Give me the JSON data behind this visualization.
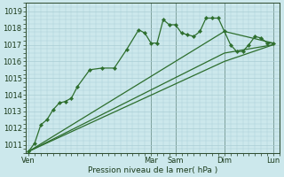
{
  "bg_color": "#cce8ec",
  "grid_color": "#aacdd4",
  "line_color": "#2d6e2d",
  "marker_color": "#2d6e2d",
  "xlabel": "Pression niveau de la mer( hPa )",
  "ylim": [
    1010.5,
    1019.5
  ],
  "yticks": [
    1011,
    1012,
    1013,
    1014,
    1015,
    1016,
    1017,
    1018,
    1019
  ],
  "day_labels": [
    "Ven",
    "Mar",
    "Sam",
    "Dim",
    "Lun"
  ],
  "day_positions": [
    0,
    40,
    48,
    64,
    80
  ],
  "series1": [
    [
      0,
      1010.6
    ],
    [
      2,
      1011.1
    ],
    [
      4,
      1012.2
    ],
    [
      6,
      1012.5
    ],
    [
      8,
      1013.1
    ],
    [
      10,
      1013.5
    ],
    [
      12,
      1013.6
    ],
    [
      14,
      1013.8
    ],
    [
      16,
      1014.5
    ],
    [
      20,
      1015.5
    ],
    [
      24,
      1015.6
    ],
    [
      28,
      1015.6
    ],
    [
      32,
      1016.7
    ],
    [
      36,
      1017.9
    ],
    [
      38,
      1017.7
    ],
    [
      40,
      1017.1
    ],
    [
      42,
      1017.1
    ],
    [
      44,
      1018.5
    ],
    [
      46,
      1018.2
    ],
    [
      48,
      1018.2
    ],
    [
      50,
      1017.7
    ],
    [
      52,
      1017.6
    ],
    [
      54,
      1017.5
    ],
    [
      56,
      1017.8
    ],
    [
      58,
      1018.6
    ],
    [
      60,
      1018.6
    ],
    [
      62,
      1018.6
    ],
    [
      64,
      1017.8
    ],
    [
      66,
      1017.0
    ],
    [
      68,
      1016.6
    ],
    [
      70,
      1016.6
    ],
    [
      72,
      1017.0
    ],
    [
      74,
      1017.5
    ],
    [
      76,
      1017.4
    ],
    [
      78,
      1017.1
    ],
    [
      80,
      1017.1
    ]
  ],
  "series2": [
    [
      0,
      1010.6
    ],
    [
      64,
      1017.8
    ],
    [
      80,
      1017.1
    ]
  ],
  "series3": [
    [
      0,
      1010.6
    ],
    [
      64,
      1016.5
    ],
    [
      80,
      1017.0
    ]
  ],
  "series4": [
    [
      0,
      1010.6
    ],
    [
      64,
      1016.0
    ],
    [
      80,
      1017.0
    ]
  ],
  "vline_positions": [
    40,
    48,
    64,
    80
  ]
}
